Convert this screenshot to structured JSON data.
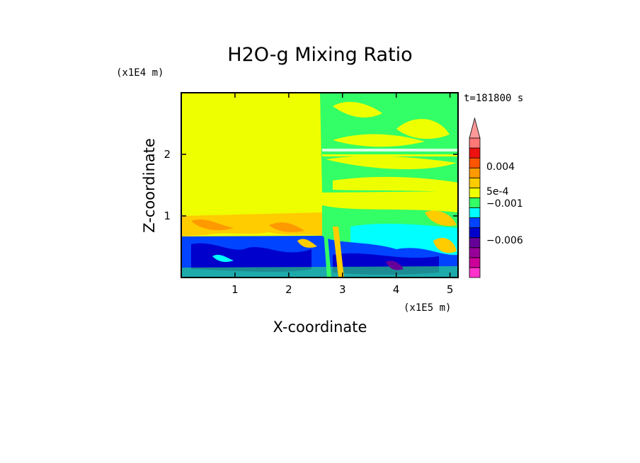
{
  "chart_data": {
    "type": "heatmap",
    "title": "H2O-g Mixing Ratio",
    "xlabel": "X-coordinate",
    "ylabel": "Z-coordinate",
    "x_scale_label": "(x1E5 m)",
    "y_scale_label": "(x1E4 m)",
    "time_label": "t=181800 s",
    "xlim": [
      0,
      5.15
    ],
    "ylim": [
      0,
      3.0
    ],
    "x_ticks": [
      "1",
      "2",
      "3",
      "4",
      "5"
    ],
    "x_tick_values": [
      1,
      2,
      3,
      4,
      5
    ],
    "y_ticks": [
      "1",
      "2"
    ],
    "y_tick_values": [
      1,
      2
    ],
    "colorbar": {
      "levels": [
        {
          "color": "#ff33cc"
        },
        {
          "color": "#cc0099"
        },
        {
          "color": "#99009a"
        },
        {
          "color": "#660099"
        },
        {
          "color": "#0000cc"
        },
        {
          "color": "#0044ff"
        },
        {
          "color": "#00ffff"
        },
        {
          "color": "#33ff66"
        },
        {
          "color": "#eeff00"
        },
        {
          "color": "#ffcc00"
        },
        {
          "color": "#ff9900"
        },
        {
          "color": "#ff5500"
        },
        {
          "color": "#ee1111"
        },
        {
          "color": "#ff7777"
        },
        {
          "color": "#ff9999"
        }
      ],
      "labels": [
        "0.004",
        "5e-4",
        "−0.001",
        "−0.006"
      ]
    },
    "regions": [
      {
        "name": "upper-left yellow",
        "x": [
          0,
          2.6
        ],
        "z": [
          1.0,
          3.0
        ],
        "color": "#eeff00"
      },
      {
        "name": "upper-right green/yellow mix",
        "x": [
          2.6,
          5.15
        ],
        "z": [
          1.3,
          3.0
        ],
        "color": "#33ff66"
      },
      {
        "name": "mid orange band",
        "x": [
          0,
          2.6
        ],
        "z": [
          0.7,
          1.0
        ],
        "color": "#ffcc00"
      },
      {
        "name": "mid-right cyan band",
        "x": [
          2.6,
          5.15
        ],
        "z": [
          0.5,
          1.0
        ],
        "color": "#00ffff"
      },
      {
        "name": "lower blue layer",
        "x": [
          0,
          5.15
        ],
        "z": [
          0.0,
          0.7
        ],
        "color": "#0000cc"
      }
    ]
  }
}
